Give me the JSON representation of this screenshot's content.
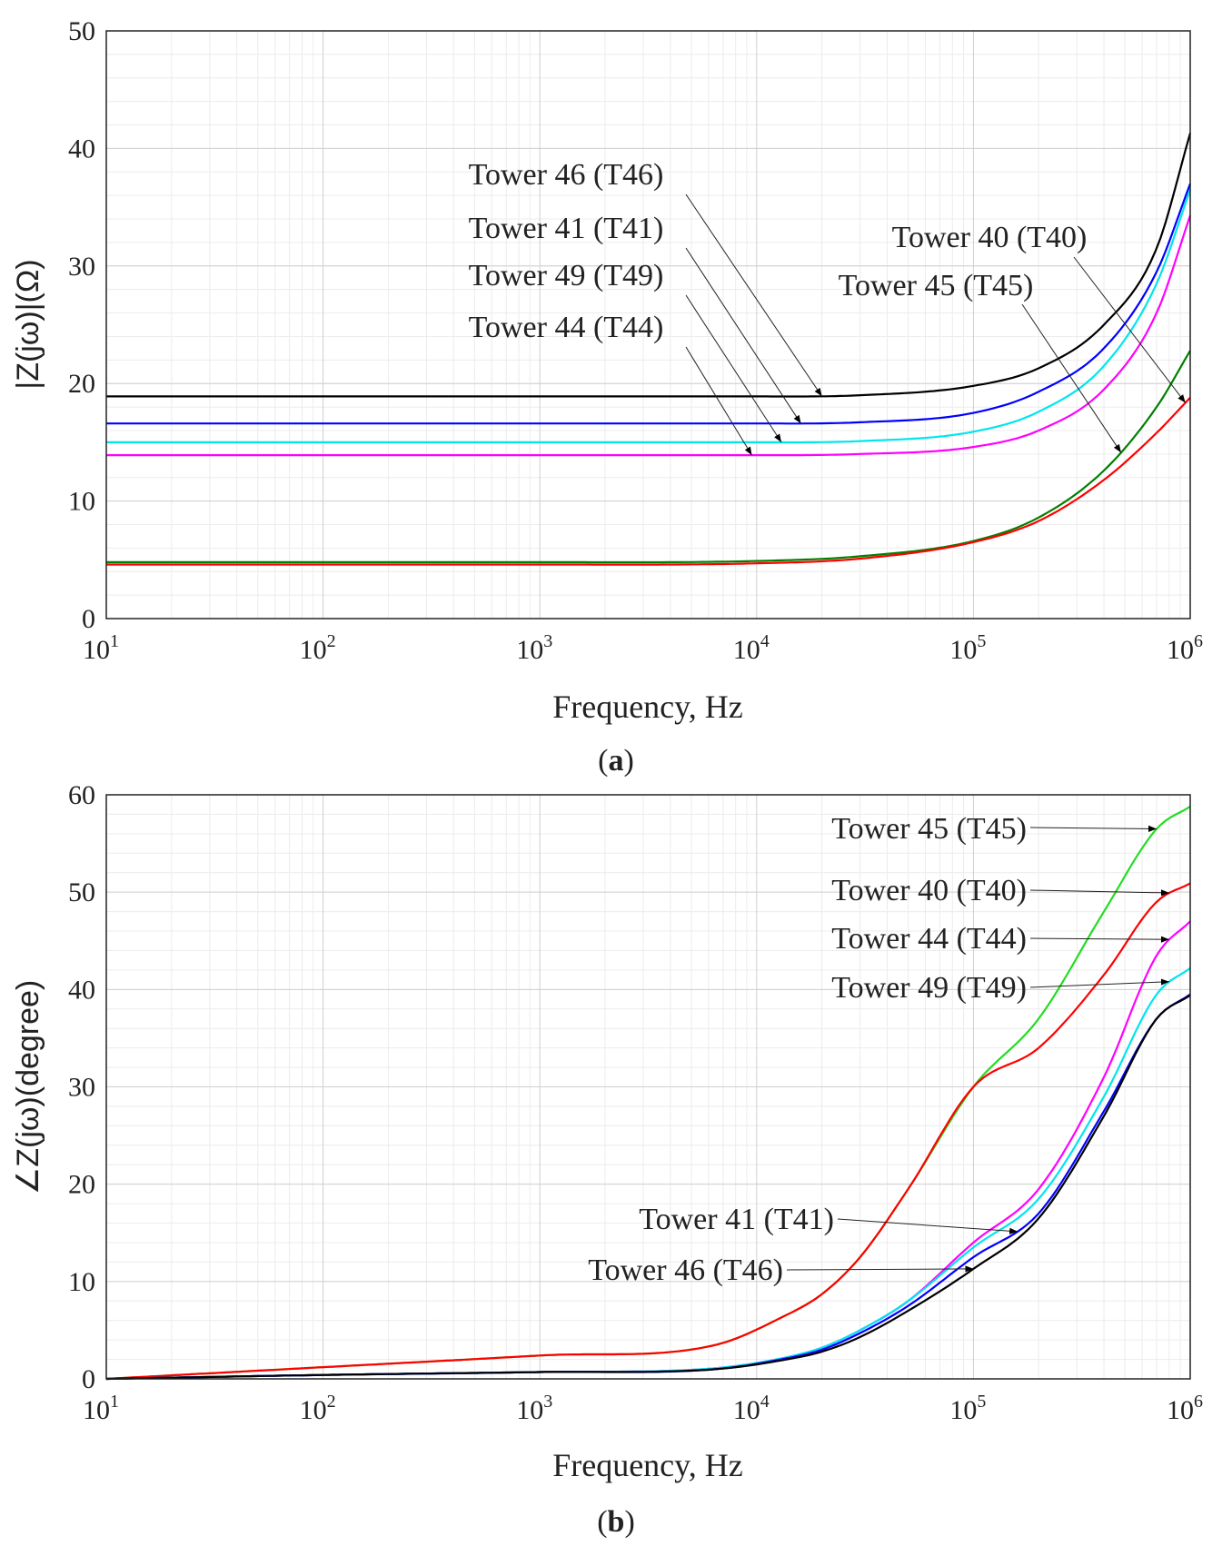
{
  "chart_data": [
    {
      "id": "a",
      "type": "line",
      "caption": "(a)",
      "caption_letter": "a",
      "xlabel": "Frequency, Hz",
      "ylabel": "|Z(jω)|(Ω)",
      "xscale": "log",
      "xlim": [
        10,
        1000000
      ],
      "ylim": [
        0,
        50
      ],
      "x_ticks": [
        {
          "base": "10",
          "exp": "1"
        },
        {
          "base": "10",
          "exp": "2"
        },
        {
          "base": "10",
          "exp": "3"
        },
        {
          "base": "10",
          "exp": "4"
        },
        {
          "base": "10",
          "exp": "5"
        },
        {
          "base": "10",
          "exp": "6"
        }
      ],
      "y_ticks": [
        "0",
        "10",
        "20",
        "30",
        "40",
        "50"
      ],
      "grid": true,
      "series": [
        {
          "name": "Tower 46 (T46)",
          "color": "#000000",
          "x": [
            10,
            1000,
            10000,
            30000,
            100000,
            200000,
            400000,
            700000,
            1000000
          ],
          "y": [
            18.9,
            18.9,
            18.9,
            19.0,
            19.8,
            21.3,
            25.0,
            31.5,
            41.3
          ]
        },
        {
          "name": "Tower 41 (T41)",
          "color": "#0000ff",
          "x": [
            10,
            1000,
            10000,
            30000,
            100000,
            200000,
            400000,
            700000,
            1000000
          ],
          "y": [
            16.6,
            16.6,
            16.6,
            16.7,
            17.5,
            19.3,
            23.0,
            29.5,
            37.0
          ]
        },
        {
          "name": "Tower 49 (T49)",
          "color": "#00e5ee",
          "x": [
            10,
            1000,
            10000,
            30000,
            100000,
            200000,
            400000,
            700000,
            1000000
          ],
          "y": [
            15.0,
            15.0,
            15.0,
            15.1,
            15.9,
            17.6,
            21.5,
            28.5,
            36.5
          ]
        },
        {
          "name": "Tower 44 (T44)",
          "color": "#ff00ff",
          "x": [
            10,
            1000,
            10000,
            30000,
            100000,
            200000,
            400000,
            700000,
            1000000
          ],
          "y": [
            13.9,
            13.9,
            13.9,
            14.0,
            14.6,
            16.0,
            19.5,
            26.0,
            34.3
          ]
        },
        {
          "name": "Tower 45 (T45)",
          "color": "#008000",
          "x": [
            10,
            1000,
            10000,
            30000,
            100000,
            200000,
            400000,
            700000,
            1000000
          ],
          "y": [
            4.8,
            4.8,
            4.9,
            5.3,
            6.6,
            8.6,
            12.6,
            18.0,
            22.8
          ]
        },
        {
          "name": "Tower 40 (T40)",
          "color": "#ff0000",
          "x": [
            10,
            1000,
            10000,
            30000,
            100000,
            200000,
            400000,
            700000,
            1000000
          ],
          "y": [
            4.6,
            4.6,
            4.7,
            5.1,
            6.5,
            8.3,
            11.8,
            15.8,
            18.8
          ]
        }
      ],
      "annotations": [
        {
          "text": "Tower 46 (T46)",
          "series": 0,
          "at_x": 20000
        },
        {
          "text": "Tower 41 (T41)",
          "series": 1,
          "at_x": 16000
        },
        {
          "text": "Tower 49 (T49)",
          "series": 2,
          "at_x": 13000
        },
        {
          "text": "Tower 44 (T44)",
          "series": 3,
          "at_x": 9500
        },
        {
          "text": "Tower 40 (T40)",
          "series": 5,
          "at_x": 950000
        },
        {
          "text": "Tower 45 (T45)",
          "series": 4,
          "at_x": 480000
        }
      ]
    },
    {
      "id": "b",
      "type": "line",
      "caption": "(b)",
      "caption_letter": "b",
      "xlabel": "Frequency, Hz",
      "ylabel": "∠Z(jω)(degree)",
      "xscale": "log",
      "xlim": [
        10,
        1000000
      ],
      "ylim": [
        0,
        60
      ],
      "x_ticks": [
        {
          "base": "10",
          "exp": "1"
        },
        {
          "base": "10",
          "exp": "2"
        },
        {
          "base": "10",
          "exp": "3"
        },
        {
          "base": "10",
          "exp": "4"
        },
        {
          "base": "10",
          "exp": "5"
        },
        {
          "base": "10",
          "exp": "6"
        }
      ],
      "y_ticks": [
        "0",
        "10",
        "20",
        "30",
        "40",
        "50",
        "60"
      ],
      "grid": true,
      "series": [
        {
          "name": "Tower 45 (T45)",
          "color": "#22dd22",
          "x": [
            10,
            100,
            1000,
            6500,
            13000,
            20000,
            30000,
            50000,
            100000,
            200000,
            400000,
            700000,
            1000000
          ],
          "y": [
            0,
            1.2,
            2.4,
            3.5,
            6.3,
            8.7,
            12.5,
            19.5,
            30.0,
            37.0,
            48.0,
            56.5,
            58.8
          ]
        },
        {
          "name": "Tower 40 (T40)",
          "color": "#ff0000",
          "x": [
            10,
            100,
            1000,
            6500,
            13000,
            20000,
            30000,
            50000,
            100000,
            200000,
            400000,
            700000,
            1000000
          ],
          "y": [
            0,
            1.2,
            2.4,
            3.5,
            6.3,
            8.7,
            12.5,
            19.5,
            30.0,
            34.0,
            41.5,
            49.0,
            50.9
          ]
        },
        {
          "name": "Tower 44 (T44)",
          "color": "#ff00ff",
          "x": [
            10,
            100,
            1000,
            6500,
            13000,
            20000,
            30000,
            50000,
            100000,
            200000,
            400000,
            700000,
            1000000
          ],
          "y": [
            0,
            0.4,
            0.7,
            1.1,
            2.1,
            3.2,
            5.0,
            8.0,
            14.0,
            19.5,
            31.0,
            43.5,
            47.0
          ]
        },
        {
          "name": "Tower 49 (T49)",
          "color": "#00e5ee",
          "x": [
            10,
            100,
            1000,
            6500,
            13000,
            20000,
            30000,
            50000,
            100000,
            200000,
            400000,
            700000,
            1000000
          ],
          "y": [
            0,
            0.4,
            0.7,
            1.1,
            2.1,
            3.2,
            5.0,
            8.0,
            13.5,
            18.5,
            29.0,
            39.5,
            42.2
          ]
        },
        {
          "name": "Tower 41 (T41)",
          "color": "#0000ff",
          "x": [
            10,
            100,
            1000,
            6500,
            13000,
            20000,
            30000,
            50000,
            100000,
            200000,
            400000,
            700000,
            1000000
          ],
          "y": [
            0,
            0.4,
            0.7,
            1.0,
            2.0,
            3.0,
            4.7,
            7.5,
            12.5,
            17.0,
            27.5,
            37.0,
            39.5
          ]
        },
        {
          "name": "Tower 46 (T46)",
          "color": "#000000",
          "x": [
            10,
            100,
            1000,
            6500,
            13000,
            20000,
            30000,
            50000,
            100000,
            200000,
            400000,
            700000,
            1000000
          ],
          "y": [
            0,
            0.4,
            0.7,
            1.0,
            1.9,
            2.8,
            4.3,
            7.0,
            11.3,
            16.5,
            27.0,
            37.0,
            39.4
          ]
        }
      ],
      "annotations": [
        {
          "text": "Tower 45 (T45)",
          "series": 0,
          "at_x": 700000
        },
        {
          "text": "Tower 40 (T40)",
          "series": 1,
          "at_x": 800000
        },
        {
          "text": "Tower 44 (T44)",
          "series": 2,
          "at_x": 800000
        },
        {
          "text": "Tower 49 (T49)",
          "series": 3,
          "at_x": 800000
        },
        {
          "text": "Tower 41 (T41)",
          "series": 4,
          "at_x": 160000
        },
        {
          "text": "Tower 46 (T46)",
          "series": 5,
          "at_x": 100000
        }
      ]
    }
  ]
}
